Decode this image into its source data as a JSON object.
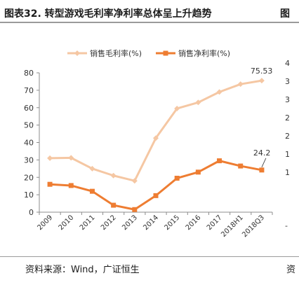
{
  "header": {
    "title": "图表32.  转型游戏毛利率净利率总体呈上升趋势",
    "next_title_fragment": "图"
  },
  "footer": {
    "source": "资料来源：Wind，广证恒生",
    "next_source_fragment": "资"
  },
  "adjacent_axis_ticks": [
    "4",
    "3",
    "3",
    "2",
    "2",
    "1",
    "1",
    "-"
  ],
  "chart_data": {
    "type": "line",
    "categories": [
      "2009",
      "2010",
      "2011",
      "2012",
      "2013",
      "2014",
      "2015",
      "2016",
      "2017",
      "2018H1",
      "2018Q3"
    ],
    "series": [
      {
        "name": "销售毛利率(%)",
        "color": "#f5c7a3",
        "marker": "diamond",
        "values": [
          31,
          31.2,
          25,
          21,
          18,
          42.5,
          59.5,
          63,
          69,
          73.5,
          75.53
        ]
      },
      {
        "name": "销售净利率(%)",
        "color": "#ee7d32",
        "marker": "square",
        "values": [
          16,
          15.3,
          12,
          4,
          1.5,
          9.5,
          19.5,
          23,
          29.5,
          26.5,
          24.2
        ]
      }
    ],
    "annotations": [
      {
        "series": 0,
        "index": 10,
        "text": "75.53"
      },
      {
        "series": 1,
        "index": 10,
        "text": "24.2"
      }
    ],
    "yticks": [
      "0",
      "10",
      "20",
      "30",
      "40",
      "50",
      "60",
      "70",
      "80"
    ],
    "ylim": [
      0,
      80
    ],
    "grid": false,
    "legend": "top"
  }
}
